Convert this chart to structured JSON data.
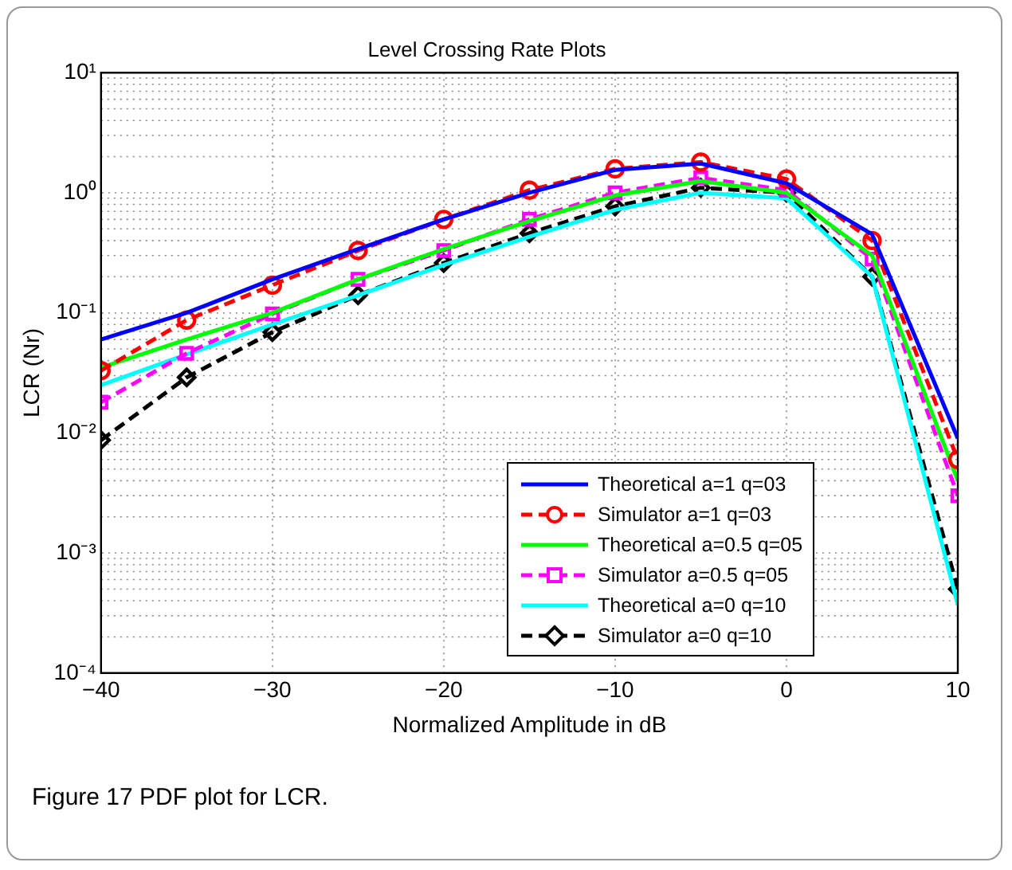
{
  "chart_data": {
    "type": "line",
    "title": "Level Crossing Rate Plots",
    "xlabel": "Normalized Amplitude in dB",
    "ylabel": "LCR (Nr)",
    "x": [
      -40,
      -35,
      -30,
      -25,
      -20,
      -15,
      -10,
      -5,
      0,
      5,
      10
    ],
    "series": [
      {
        "name": "Theoretical a=1 q=03",
        "color": "#0000ff",
        "marker": "none",
        "line_style": "solid",
        "values": [
          0.06,
          0.1,
          0.19,
          0.34,
          0.6,
          1.0,
          1.55,
          1.75,
          1.2,
          0.45,
          0.009
        ]
      },
      {
        "name": "Simulator a=1 q=03",
        "color": "#ff0000",
        "marker": "circle",
        "line_style": "dashed",
        "values": [
          0.033,
          0.087,
          0.17,
          0.33,
          0.6,
          1.05,
          1.58,
          1.8,
          1.3,
          0.4,
          0.006
        ]
      },
      {
        "name": "Theoretical a=0.5 q=05",
        "color": "#00ff00",
        "marker": "none",
        "line_style": "solid",
        "values": [
          0.035,
          0.06,
          0.1,
          0.19,
          0.34,
          0.58,
          0.95,
          1.25,
          1.0,
          0.3,
          0.004
        ]
      },
      {
        "name": "Simulator a=0.5 q=05",
        "color": "#ff00ff",
        "marker": "square",
        "line_style": "dashed",
        "values": [
          0.018,
          0.046,
          0.098,
          0.19,
          0.33,
          0.6,
          1.0,
          1.33,
          1.05,
          0.28,
          0.003
        ]
      },
      {
        "name": "Theoretical a=0 q=10",
        "color": "#00ffff",
        "marker": "none",
        "line_style": "solid",
        "values": [
          0.025,
          0.045,
          0.08,
          0.14,
          0.25,
          0.43,
          0.72,
          1.0,
          0.9,
          0.2,
          0.00037
        ]
      },
      {
        "name": "Simulator a=0 q=10",
        "color": "#000000",
        "marker": "diamond",
        "line_style": "dashed",
        "values": [
          0.0087,
          0.029,
          0.069,
          0.14,
          0.26,
          0.46,
          0.77,
          1.1,
          1.0,
          0.2,
          0.0005
        ]
      }
    ],
    "xlim": [
      -40,
      10
    ],
    "xticks": [
      {
        "value": -40,
        "label": "−40"
      },
      {
        "value": -30,
        "label": "−30"
      },
      {
        "value": -20,
        "label": "−20"
      },
      {
        "value": -10,
        "label": "−10"
      },
      0,
      10
    ],
    "log": "y",
    "ylim": [
      0.0001,
      10
    ],
    "yticks": [
      {
        "value": 0.0001,
        "label": "10⁻⁴"
      },
      {
        "value": 0.001,
        "label": "10⁻³"
      },
      {
        "value": 0.01,
        "label": "10⁻²"
      },
      {
        "value": 0.1,
        "label": "10⁻¹"
      },
      {
        "value": 1,
        "label": "10⁰"
      },
      {
        "value": 10,
        "label": "10¹"
      }
    ],
    "grid": true,
    "legend": "bottom right",
    "annotations": [
      "Figure 17 PDF plot for LCR."
    ]
  }
}
